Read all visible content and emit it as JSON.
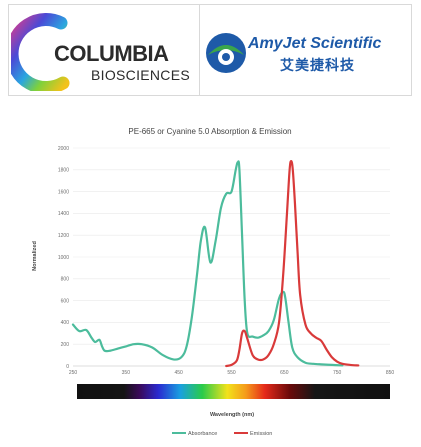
{
  "logos": {
    "left": {
      "name": "COLUMBIA",
      "sub": "BIOSCIENCES"
    },
    "right": {
      "name": "AmyJet Scientific",
      "sub": "艾美捷科技"
    }
  },
  "colors": {
    "absorbance": "#4cbc9c",
    "emission": "#d93a3a",
    "amyjet_blue": "#1e5aa8",
    "amyjet_green": "#3aa54b"
  },
  "chart_data": {
    "type": "line",
    "title": "PE-665 or Cyanine 5.0 Absorption & Emission",
    "xlabel": "Wavelength (nm)",
    "ylabel": "Normalized",
    "xlim": [
      250,
      850
    ],
    "ylim": [
      0,
      2000
    ],
    "xticks": [
      250,
      350,
      450,
      550,
      650,
      750,
      850
    ],
    "yticks": [
      0,
      200,
      400,
      600,
      800,
      1000,
      1200,
      1400,
      1600,
      1800,
      2000
    ],
    "grid": true,
    "legend": "bottom",
    "series": [
      {
        "name": "Absorbance",
        "color": "#4cbc9c",
        "x": [
          250,
          262,
          275,
          285,
          292,
          300,
          305,
          310,
          320,
          335,
          350,
          365,
          380,
          400,
          420,
          440,
          455,
          465,
          475,
          485,
          492,
          500,
          510,
          520,
          530,
          540,
          550,
          558,
          562,
          565,
          570,
          575,
          580,
          590,
          600,
          610,
          620,
          630,
          640,
          648,
          652,
          658,
          665,
          675,
          690,
          705,
          720,
          740,
          760
        ],
        "values": [
          380,
          320,
          330,
          260,
          220,
          240,
          180,
          140,
          140,
          160,
          180,
          200,
          200,
          170,
          100,
          60,
          80,
          180,
          450,
          850,
          1150,
          1270,
          950,
          1150,
          1450,
          1580,
          1600,
          1800,
          1870,
          1800,
          1200,
          600,
          300,
          270,
          260,
          280,
          320,
          420,
          620,
          680,
          620,
          400,
          170,
          80,
          30,
          20,
          15,
          10,
          5
        ]
      },
      {
        "name": "Emission",
        "color": "#d93a3a",
        "x": [
          540,
          550,
          560,
          565,
          570,
          575,
          580,
          590,
          600,
          610,
          620,
          630,
          640,
          648,
          655,
          660,
          663,
          666,
          670,
          675,
          680,
          690,
          700,
          710,
          720,
          730,
          740,
          750,
          760,
          775,
          790
        ],
        "values": [
          0,
          10,
          50,
          150,
          300,
          320,
          250,
          100,
          60,
          60,
          100,
          200,
          400,
          850,
          1400,
          1800,
          1880,
          1800,
          1500,
          1050,
          650,
          380,
          300,
          260,
          230,
          150,
          80,
          40,
          20,
          10,
          5
        ]
      }
    ]
  }
}
